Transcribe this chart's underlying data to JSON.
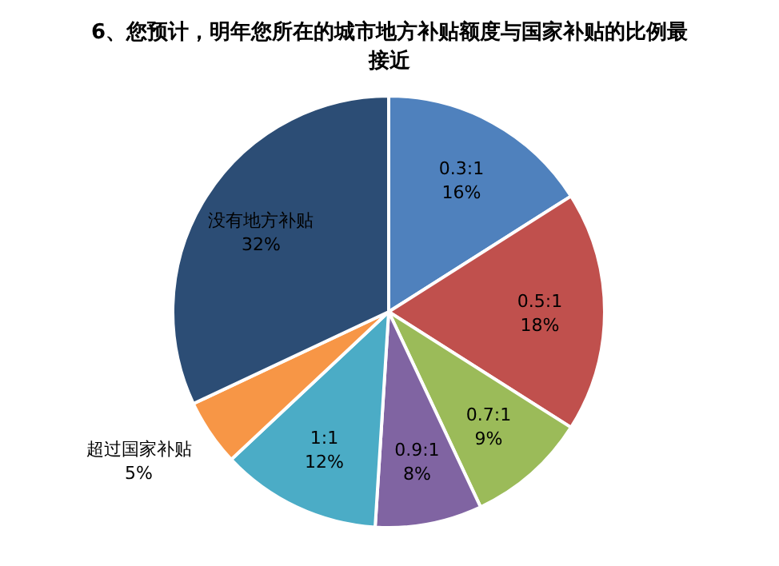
{
  "chart_data": {
    "type": "pie",
    "title": "6、您预计，明年您所在的城市地方补贴额度与国家补贴的比例最接近",
    "categories": [
      "0.3:1",
      "0.5:1",
      "0.7:1",
      "0.9:1",
      "1:1",
      "超过国家补贴",
      "没有地方补贴"
    ],
    "values": [
      16,
      18,
      9,
      8,
      12,
      5,
      32
    ],
    "colors": [
      "#4f81bd",
      "#c0504d",
      "#9bbb59",
      "#8064a2",
      "#4bacc6",
      "#f79646",
      "#2c4d75"
    ],
    "value_labels": [
      "16%",
      "18%",
      "9%",
      "8%",
      "12%",
      "5%",
      "32%"
    ]
  }
}
